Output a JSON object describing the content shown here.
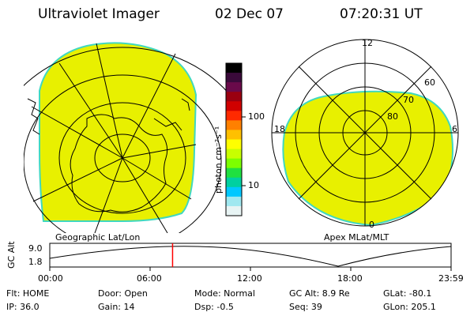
{
  "header": {
    "title": "Ultraviolet Imager",
    "date": "02 Dec 07",
    "time": "07:20:31 UT"
  },
  "left_panel": {
    "label": "Geographic Lat/Lon"
  },
  "right_panel": {
    "label": "Apex MLat/MLT",
    "mlt_labels": {
      "top": "12",
      "left": "18",
      "right": "6",
      "bottom": "0"
    },
    "lat_labels": [
      "60",
      "70",
      "80"
    ]
  },
  "colorbar": {
    "unit_label": "photon cm⁻²s⁻¹",
    "ticks": [
      "100",
      "10"
    ],
    "colors": [
      "#000000",
      "#3a0a3a",
      "#6a0a4a",
      "#9a0010",
      "#d00000",
      "#ff2a00",
      "#ff8000",
      "#ffc000",
      "#ffff00",
      "#c8ff00",
      "#7cff00",
      "#20e040",
      "#00d0a0",
      "#00c8ff",
      "#a0e8f0",
      "#e8f4f4"
    ]
  },
  "altitude_plot": {
    "ylabel": "GC Alt",
    "y_ticks": [
      "9.0",
      "1.8"
    ],
    "x_ticks": [
      "00:00",
      "06:00",
      "12:00",
      "18:00",
      "23:59"
    ],
    "current_time_fraction": 0.306
  },
  "info": {
    "flt": "Flt: HOME",
    "ip": "IP: 36.0",
    "door": "Door: Open",
    "gain": "Gain: 14",
    "mode": "Mode: Normal",
    "dsp": "Dsp:   -0.5",
    "gc_alt": "GC Alt: 8.9 Re",
    "seq": "Seq: 39",
    "glat": "GLat: -80.1",
    "glon": "GLon: 205.1"
  },
  "colors": {
    "emission_fill": "#e8f000",
    "emission_edge": "#40d8c0",
    "time_marker": "#ff0000"
  }
}
